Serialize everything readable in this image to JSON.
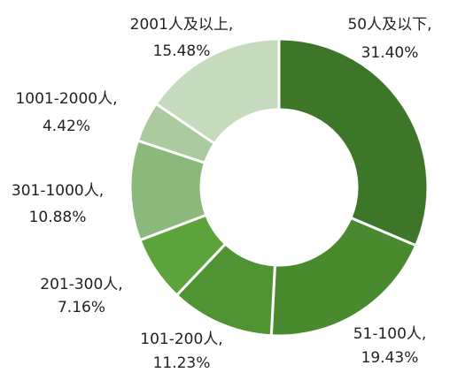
{
  "chart_data": {
    "type": "donut",
    "categories": [
      "50人及以下,",
      "51-100人,",
      "101-200人,",
      "201-300人,",
      "301-1000人,",
      "1001-2000人,",
      "2001人及以上,"
    ],
    "values": [
      31.4,
      19.43,
      11.23,
      7.16,
      10.88,
      4.42,
      15.48
    ],
    "value_labels": [
      "31.40%",
      "19.43%",
      "11.23%",
      "7.16%",
      "10.88%",
      "4.42%",
      "15.48%"
    ],
    "colors": [
      "#3d7628",
      "#4a8a2f",
      "#4f9333",
      "#5ca33c",
      "#8bb87b",
      "#abcaa0",
      "#c6dbbe"
    ]
  }
}
